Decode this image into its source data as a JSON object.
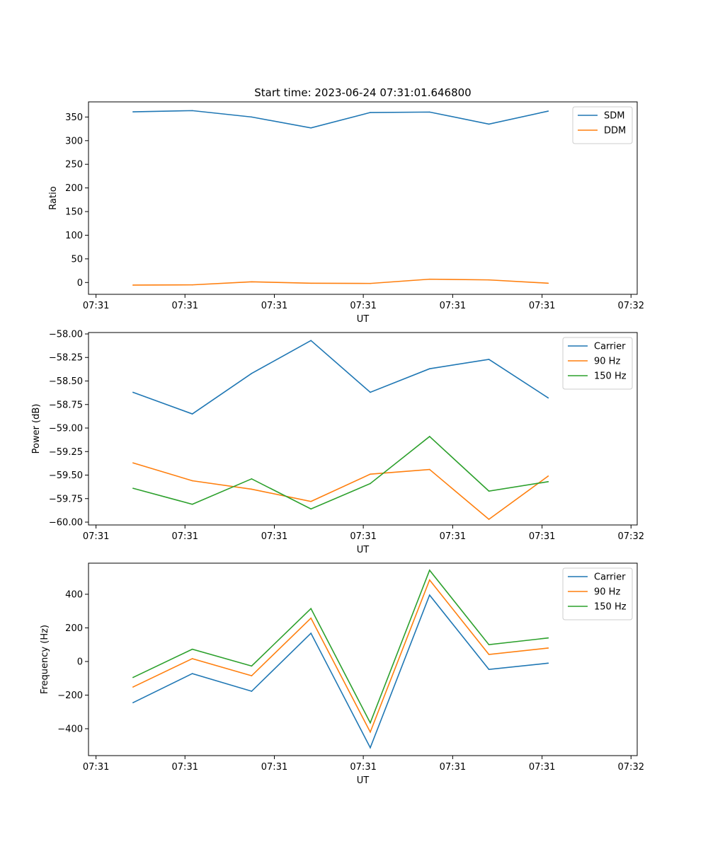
{
  "figure": {
    "title": "Start time: 2023-06-24 07:31:01.646800"
  },
  "chart_data": [
    {
      "type": "line",
      "title": "Start time: 2023-06-24 07:31:01.646800",
      "xlabel": "UT",
      "ylabel": "Ratio",
      "x_tick_labels": [
        "07:31",
        "07:31",
        "07:31",
        "07:31",
        "07:31",
        "07:31",
        "07:32"
      ],
      "x": [
        1,
        2,
        3,
        4,
        5,
        6,
        7,
        8
      ],
      "xlim": [
        0.25,
        9.5
      ],
      "ylim": [
        -25,
        382
      ],
      "yticks": [
        0,
        50,
        100,
        150,
        200,
        250,
        300,
        350
      ],
      "legend": "top-right",
      "series": [
        {
          "name": "SDM",
          "color": "#1f77b4",
          "values": [
            361,
            363.5,
            350,
            327,
            359.5,
            360.5,
            335,
            362.5
          ]
        },
        {
          "name": "DDM",
          "color": "#ff7f0e",
          "values": [
            -5.5,
            -5,
            1.5,
            -1.5,
            -2,
            7,
            5.5,
            -1.5
          ]
        }
      ]
    },
    {
      "type": "line",
      "xlabel": "UT",
      "ylabel": "Power (dB)",
      "x_tick_labels": [
        "07:31",
        "07:31",
        "07:31",
        "07:31",
        "07:31",
        "07:31",
        "07:32"
      ],
      "x": [
        1,
        2,
        3,
        4,
        5,
        6,
        7,
        8
      ],
      "xlim": [
        0.25,
        9.5
      ],
      "ylim": [
        -60.03,
        -57.985
      ],
      "yticks": [
        -60.0,
        -59.75,
        -59.5,
        -59.25,
        -59.0,
        -58.75,
        -58.5,
        -58.25,
        -58.0
      ],
      "ytick_labels": [
        "−60.00",
        "−59.75",
        "−59.50",
        "−59.25",
        "−59.00",
        "−58.75",
        "−58.50",
        "−58.25",
        "−58.00"
      ],
      "legend": "top-right",
      "series": [
        {
          "name": "Carrier",
          "color": "#1f77b4",
          "values": [
            -58.62,
            -58.85,
            -58.42,
            -58.07,
            -58.62,
            -58.37,
            -58.27,
            -58.68
          ]
        },
        {
          "name": "90 Hz",
          "color": "#ff7f0e",
          "values": [
            -59.37,
            -59.56,
            -59.65,
            -59.78,
            -59.49,
            -59.44,
            -59.97,
            -59.51
          ]
        },
        {
          "name": "150 Hz",
          "color": "#2ca02c",
          "values": [
            -59.64,
            -59.81,
            -59.54,
            -59.86,
            -59.59,
            -59.09,
            -59.67,
            -59.57
          ]
        }
      ]
    },
    {
      "type": "line",
      "xlabel": "UT",
      "ylabel": "Frequency (Hz)",
      "x_tick_labels": [
        "07:31",
        "07:31",
        "07:31",
        "07:31",
        "07:31",
        "07:31",
        "07:32"
      ],
      "x": [
        1,
        2,
        3,
        4,
        5,
        6,
        7,
        8
      ],
      "xlim": [
        0.25,
        9.5
      ],
      "ylim": [
        -560,
        585
      ],
      "yticks": [
        -400,
        -200,
        0,
        200,
        400
      ],
      "ytick_labels": [
        "−400",
        "−200",
        "0",
        "200",
        "400"
      ],
      "legend": "top-right",
      "series": [
        {
          "name": "Carrier",
          "color": "#1f77b4",
          "values": [
            -245,
            -72,
            -177,
            168,
            -513,
            395,
            -47,
            -10
          ]
        },
        {
          "name": "90 Hz",
          "color": "#ff7f0e",
          "values": [
            -152,
            17,
            -85,
            258,
            -420,
            485,
            42,
            80
          ]
        },
        {
          "name": "150 Hz",
          "color": "#2ca02c",
          "values": [
            -95,
            73,
            -27,
            315,
            -365,
            543,
            100,
            140
          ]
        }
      ]
    }
  ]
}
